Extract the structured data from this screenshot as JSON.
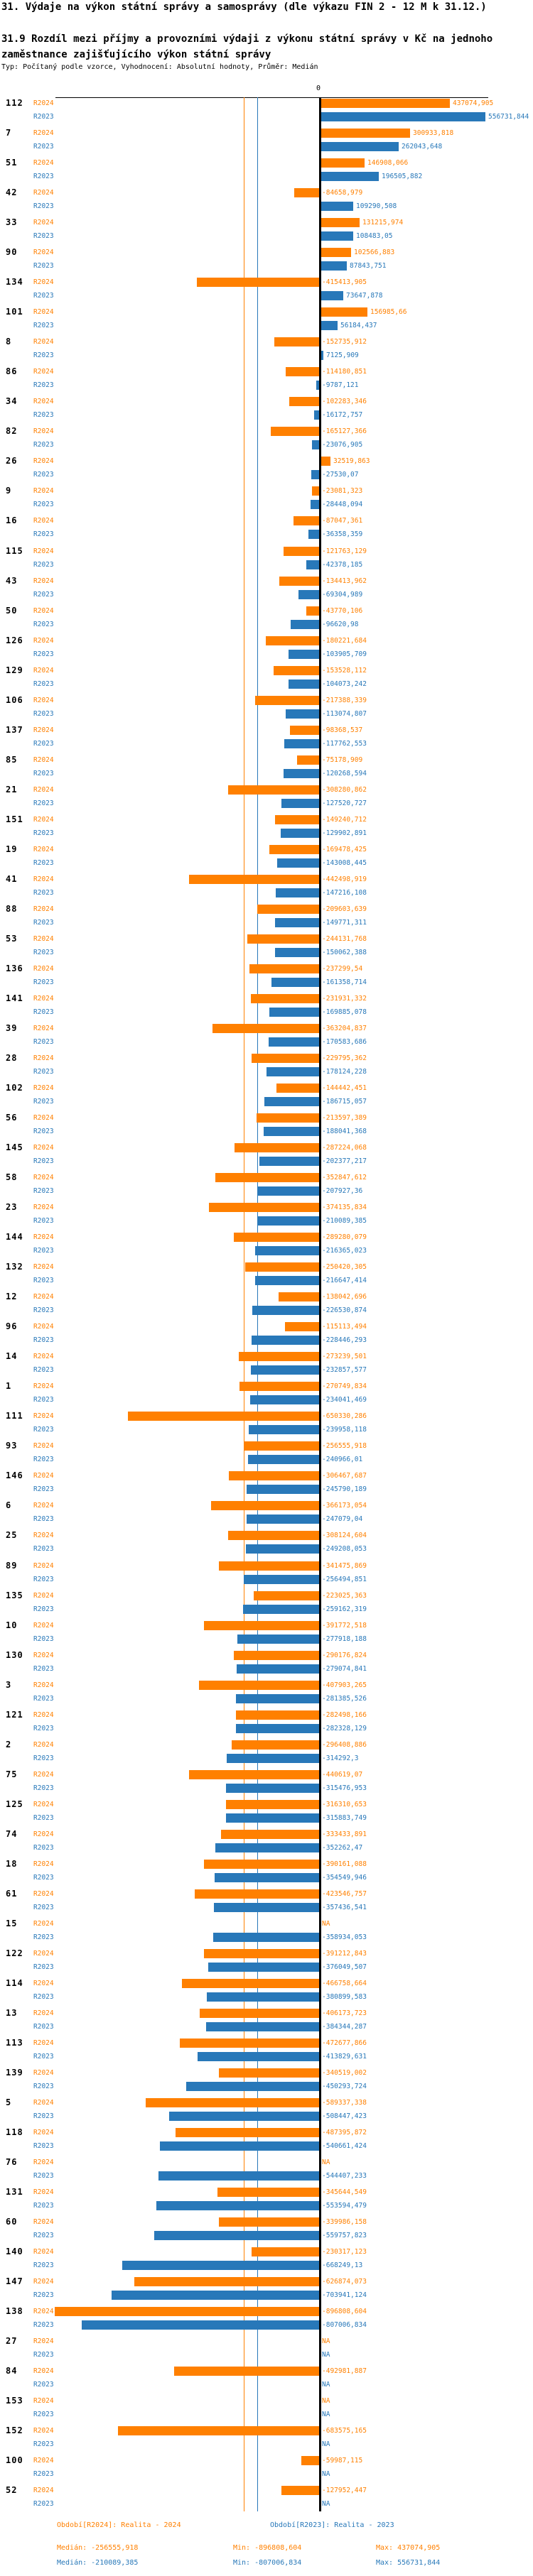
{
  "header": {
    "title": "31. Výdaje na výkon státní správy a samosprávy (dle výkazu FIN 2 - 12 M k 31.12.)",
    "subtitle": "31.9 Rozdíl mezi příjmy a provozními výdaji z výkonu státní správy v Kč na jednoho zaměstnance zajišťujícího výkon státní správy",
    "meta": "Typ: Počítaný podle vzorce, Vyhodnocení: Absolutní hodnoty, Průměr: Medián"
  },
  "chart_data": {
    "type": "bar",
    "orientation": "horizontal",
    "value_axis": {
      "zero_label": "0",
      "min": -896808.604,
      "max": 556731.844,
      "gridlines": false
    },
    "series": [
      {
        "name": "R2024",
        "color": "#ff8000",
        "median": -256555.918,
        "period": "Období[R2024]: Realita - 2024",
        "stats": {
          "median_label": "Medián: -256555,918",
          "min_label": "Min: -896808,604",
          "max_label": "Max: 437074,905"
        }
      },
      {
        "name": "R2023",
        "color": "#2878b9",
        "median": -210089.385,
        "period": "Období[R2023]: Realita - 2023",
        "stats": {
          "median_label": "Medián: -210089,385",
          "min_label": "Min: -807006,834",
          "max_label": "Max: 556731,844"
        }
      }
    ],
    "groups": [
      {
        "id": "112",
        "r2024": "437074,905",
        "r2023": "556731,844"
      },
      {
        "id": "7",
        "r2024": "300933,818",
        "r2023": "262043,648"
      },
      {
        "id": "51",
        "r2024": "146908,066",
        "r2023": "196505,882"
      },
      {
        "id": "42",
        "r2024": "-84658,979",
        "r2023": "109290,508"
      },
      {
        "id": "33",
        "r2024": "131215,974",
        "r2023": "108483,05"
      },
      {
        "id": "90",
        "r2024": "102566,883",
        "r2023": "87843,751"
      },
      {
        "id": "134",
        "r2024": "-415413,905",
        "r2023": "73647,878"
      },
      {
        "id": "101",
        "r2024": "156985,66",
        "r2023": "56184,437"
      },
      {
        "id": "8",
        "r2024": "-152735,912",
        "r2023": "7125,909"
      },
      {
        "id": "86",
        "r2024": "-114180,851",
        "r2023": "-9787,121"
      },
      {
        "id": "34",
        "r2024": "-102283,346",
        "r2023": "-16172,757"
      },
      {
        "id": "82",
        "r2024": "-165127,366",
        "r2023": "-23076,905"
      },
      {
        "id": "26",
        "r2024": "32519,863",
        "r2023": "-27530,07"
      },
      {
        "id": "9",
        "r2024": "-23081,323",
        "r2023": "-28448,094"
      },
      {
        "id": "16",
        "r2024": "-87047,361",
        "r2023": "-36358,359"
      },
      {
        "id": "115",
        "r2024": "-121763,129",
        "r2023": "-42378,185"
      },
      {
        "id": "43",
        "r2024": "-134413,962",
        "r2023": "-69304,989"
      },
      {
        "id": "50",
        "r2024": "-43770,106",
        "r2023": "-96620,98"
      },
      {
        "id": "126",
        "r2024": "-180221,684",
        "r2023": "-103905,709"
      },
      {
        "id": "129",
        "r2024": "-153528,112",
        "r2023": "-104073,242"
      },
      {
        "id": "106",
        "r2024": "-217388,339",
        "r2023": "-113074,807"
      },
      {
        "id": "137",
        "r2024": "-98368,537",
        "r2023": "-117762,553"
      },
      {
        "id": "85",
        "r2024": "-75178,909",
        "r2023": "-120268,594"
      },
      {
        "id": "21",
        "r2024": "-308280,862",
        "r2023": "-127520,727"
      },
      {
        "id": "151",
        "r2024": "-149240,712",
        "r2023": "-129902,891"
      },
      {
        "id": "19",
        "r2024": "-169478,425",
        "r2023": "-143008,445"
      },
      {
        "id": "41",
        "r2024": "-442498,919",
        "r2023": "-147216,108"
      },
      {
        "id": "88",
        "r2024": "-209603,639",
        "r2023": "-149771,311"
      },
      {
        "id": "53",
        "r2024": "-244131,768",
        "r2023": "-150062,388"
      },
      {
        "id": "136",
        "r2024": "-237299,54",
        "r2023": "-161358,714"
      },
      {
        "id": "141",
        "r2024": "-231931,332",
        "r2023": "-169885,078"
      },
      {
        "id": "39",
        "r2024": "-363204,837",
        "r2023": "-170583,686"
      },
      {
        "id": "28",
        "r2024": "-229795,362",
        "r2023": "-178124,228"
      },
      {
        "id": "102",
        "r2024": "-144442,451",
        "r2023": "-186715,057"
      },
      {
        "id": "56",
        "r2024": "-213597,389",
        "r2023": "-188041,368"
      },
      {
        "id": "145",
        "r2024": "-287224,068",
        "r2023": "-202377,217"
      },
      {
        "id": "58",
        "r2024": "-352847,612",
        "r2023": "-207927,36"
      },
      {
        "id": "23",
        "r2024": "-374135,834",
        "r2023": "-210089,385"
      },
      {
        "id": "144",
        "r2024": "-289280,079",
        "r2023": "-216365,023"
      },
      {
        "id": "132",
        "r2024": "-250420,305",
        "r2023": "-216647,414"
      },
      {
        "id": "12",
        "r2024": "-138042,696",
        "r2023": "-226530,874"
      },
      {
        "id": "96",
        "r2024": "-115113,494",
        "r2023": "-228446,293"
      },
      {
        "id": "14",
        "r2024": "-273239,501",
        "r2023": "-232857,577"
      },
      {
        "id": "1",
        "r2024": "-270749,834",
        "r2023": "-234041,469"
      },
      {
        "id": "111",
        "r2024": "-650330,286",
        "r2023": "-239958,118"
      },
      {
        "id": "93",
        "r2024": "-256555,918",
        "r2023": "-240966,01"
      },
      {
        "id": "146",
        "r2024": "-306467,687",
        "r2023": "-245790,189"
      },
      {
        "id": "6",
        "r2024": "-366173,054",
        "r2023": "-247079,04"
      },
      {
        "id": "25",
        "r2024": "-308124,604",
        "r2023": "-249208,053"
      },
      {
        "id": "89",
        "r2024": "-341475,869",
        "r2023": "-256494,851"
      },
      {
        "id": "135",
        "r2024": "-223025,363",
        "r2023": "-259162,319"
      },
      {
        "id": "10",
        "r2024": "-391772,518",
        "r2023": "-277918,188"
      },
      {
        "id": "130",
        "r2024": "-290176,824",
        "r2023": "-279074,841"
      },
      {
        "id": "3",
        "r2024": "-407903,265",
        "r2023": "-281385,526"
      },
      {
        "id": "121",
        "r2024": "-282498,166",
        "r2023": "-282328,129"
      },
      {
        "id": "2",
        "r2024": "-296408,886",
        "r2023": "-314292,3"
      },
      {
        "id": "75",
        "r2024": "-440619,07",
        "r2023": "-315476,953"
      },
      {
        "id": "125",
        "r2024": "-316310,653",
        "r2023": "-315883,749"
      },
      {
        "id": "74",
        "r2024": "-333433,891",
        "r2023": "-352262,47"
      },
      {
        "id": "18",
        "r2024": "-390161,088",
        "r2023": "-354549,946"
      },
      {
        "id": "61",
        "r2024": "-423546,757",
        "r2023": "-357436,541"
      },
      {
        "id": "15",
        "r2024": "NA",
        "r2023": "-358934,053"
      },
      {
        "id": "122",
        "r2024": "-391212,843",
        "r2023": "-376049,507"
      },
      {
        "id": "114",
        "r2024": "-466758,664",
        "r2023": "-380899,583"
      },
      {
        "id": "13",
        "r2024": "-406173,723",
        "r2023": "-384344,287"
      },
      {
        "id": "113",
        "r2024": "-472677,866",
        "r2023": "-413829,631"
      },
      {
        "id": "139",
        "r2024": "-340519,002",
        "r2023": "-450293,724"
      },
      {
        "id": "5",
        "r2024": "-589337,338",
        "r2023": "-508447,423"
      },
      {
        "id": "118",
        "r2024": "-487395,872",
        "r2023": "-540661,424"
      },
      {
        "id": "76",
        "r2024": "NA",
        "r2023": "-544407,233"
      },
      {
        "id": "131",
        "r2024": "-345644,549",
        "r2023": "-553594,479"
      },
      {
        "id": "60",
        "r2024": "-339986,158",
        "r2023": "-559757,823"
      },
      {
        "id": "140",
        "r2024": "-230317,123",
        "r2023": "-668249,13"
      },
      {
        "id": "147",
        "r2024": "-626874,073",
        "r2023": "-703941,124"
      },
      {
        "id": "138",
        "r2024": "-896808,604",
        "r2023": "-807006,834"
      },
      {
        "id": "27",
        "r2024": "NA",
        "r2023": "NA"
      },
      {
        "id": "84",
        "r2024": "-492981,887",
        "r2023": "NA"
      },
      {
        "id": "153",
        "r2024": "NA",
        "r2023": "NA"
      },
      {
        "id": "152",
        "r2024": "-683575,165",
        "r2023": "NA"
      },
      {
        "id": "100",
        "r2024": "-59987,115",
        "r2023": "NA"
      },
      {
        "id": "52",
        "r2024": "-127952,447",
        "r2023": "NA"
      }
    ]
  }
}
